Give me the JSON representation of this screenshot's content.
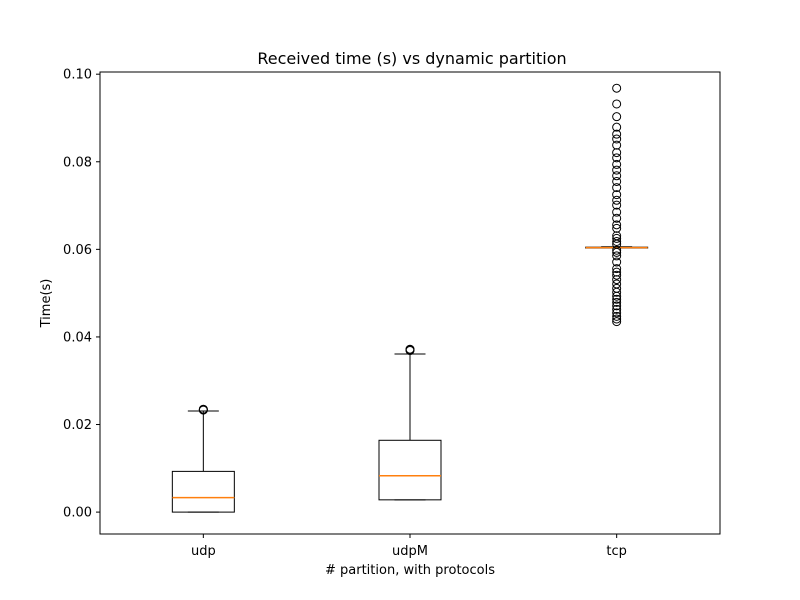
{
  "chart_data": {
    "type": "box",
    "title": "Received time (s) vs dynamic partition",
    "xlabel": "# partition, with protocols",
    "ylabel": "Time(s)",
    "ylim": [
      -0.005,
      0.1005
    ],
    "yticks": [
      0.0,
      0.02,
      0.04,
      0.06,
      0.08,
      0.1
    ],
    "ytick_labels": [
      "0.00",
      "0.02",
      "0.04",
      "0.06",
      "0.08",
      "0.10"
    ],
    "categories": [
      "udp",
      "udpM",
      "tcp"
    ],
    "grid": false,
    "boxes": [
      {
        "label": "udp",
        "whisker_low": 0.0,
        "q1": 0.0,
        "median": 0.0033,
        "q3": 0.0093,
        "whisker_high": 0.0231,
        "outliers": [
          0.0233,
          0.0234,
          0.0235
        ]
      },
      {
        "label": "udpM",
        "whisker_low": 0.0028,
        "q1": 0.0028,
        "median": 0.0083,
        "q3": 0.0164,
        "whisker_high": 0.0361,
        "outliers": [
          0.0369,
          0.0371,
          0.0372
        ]
      },
      {
        "label": "tcp",
        "whisker_low": 0.0603,
        "q1": 0.0603,
        "median": 0.0604,
        "q3": 0.0605,
        "whisker_high": 0.0606,
        "outliers": [
          0.0435,
          0.0441,
          0.0447,
          0.0455,
          0.0463,
          0.0471,
          0.0479,
          0.0486,
          0.0493,
          0.0502,
          0.0511,
          0.0521,
          0.0531,
          0.0541,
          0.0548,
          0.0556,
          0.0571,
          0.0585,
          0.0593,
          0.0598,
          0.0612,
          0.0618,
          0.0625,
          0.0631,
          0.0648,
          0.0656,
          0.0671,
          0.0685,
          0.0701,
          0.0712,
          0.0725,
          0.0741,
          0.0755,
          0.0768,
          0.0781,
          0.0794,
          0.0809,
          0.0821,
          0.0838,
          0.0852,
          0.0863,
          0.0879,
          0.0903,
          0.0932,
          0.0968
        ]
      }
    ],
    "colors": {
      "box": "#000000",
      "median": "#ff7f0e",
      "outlier": "#000000"
    }
  }
}
